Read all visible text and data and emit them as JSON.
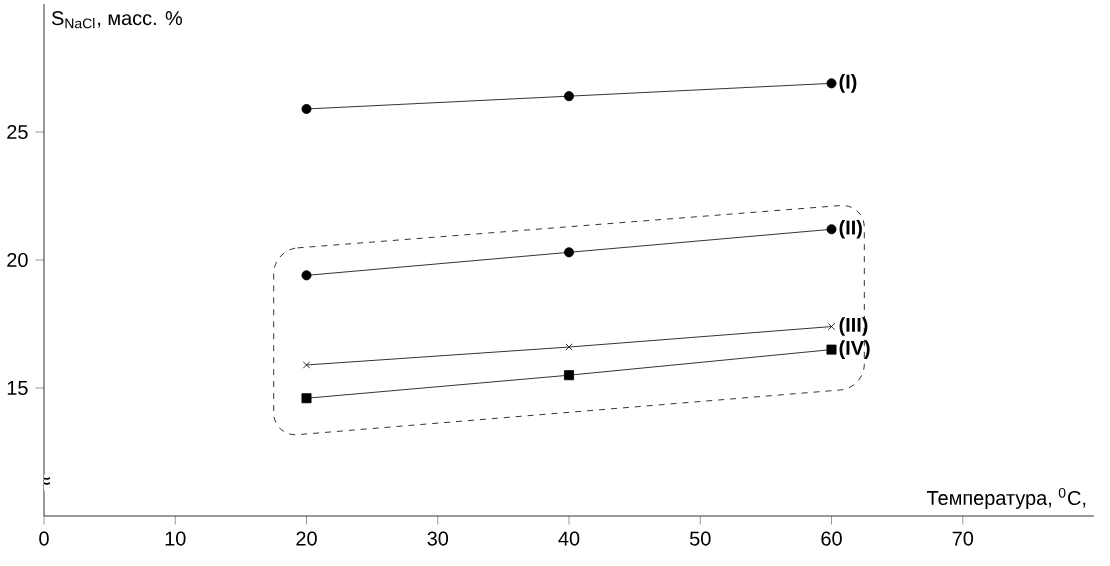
{
  "chart_data": {
    "type": "line",
    "xlabel": "Температура, $^{0}$C,",
    "ylabel": "S$_{NaCl}$, масс. %",
    "x": [
      20,
      40,
      60
    ],
    "series": [
      {
        "name": "(I)",
        "color": "#000000",
        "marker": "circle",
        "values": [
          25.9,
          26.4,
          26.9
        ]
      },
      {
        "name": "(II)",
        "color": "#000000",
        "marker": "circle",
        "values": [
          19.4,
          20.3,
          21.2
        ]
      },
      {
        "name": "(III)",
        "color": "#000000",
        "marker": "cross",
        "values": [
          15.9,
          16.6,
          17.4
        ]
      },
      {
        "name": "(IV)",
        "color": "#000000",
        "marker": "square",
        "values": [
          14.6,
          15.5,
          16.5
        ]
      }
    ],
    "xlim": [
      0,
      80
    ],
    "ylim": [
      10,
      30
    ],
    "xticks": [
      0,
      10,
      20,
      30,
      40,
      50,
      60,
      70
    ],
    "yticks": [
      15,
      20,
      25
    ],
    "annotations": [
      "≈"
    ],
    "grid": false,
    "line_style": "solid"
  }
}
